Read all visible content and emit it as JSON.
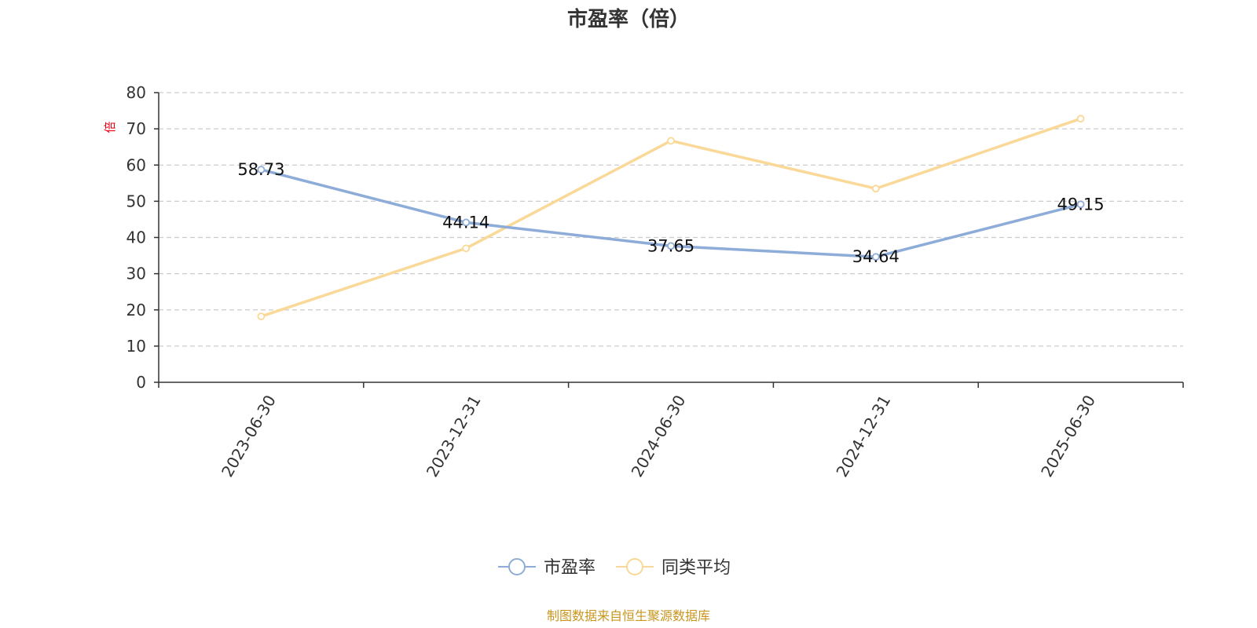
{
  "chart_data": {
    "type": "line",
    "title": "市盈率（倍）",
    "ylabel": "倍",
    "xlabel": "",
    "categories": [
      "2023-06-30",
      "2023-12-31",
      "2024-06-30",
      "2024-12-31",
      "2025-06-30"
    ],
    "ylim": [
      0,
      80
    ],
    "yticks": [
      0,
      10,
      20,
      30,
      40,
      50,
      60,
      70,
      80
    ],
    "grid": true,
    "legend_position": "bottom",
    "series": [
      {
        "name": "市盈率",
        "values": [
          58.73,
          44.14,
          37.65,
          34.64,
          49.15
        ],
        "color": "#8eacd8",
        "show_labels": true
      },
      {
        "name": "同类平均",
        "values": [
          18.2,
          37.0,
          66.7,
          53.5,
          72.8
        ],
        "color": "#fad897",
        "show_labels": false
      }
    ]
  },
  "source_note": "制图数据来自恒生聚源数据库"
}
